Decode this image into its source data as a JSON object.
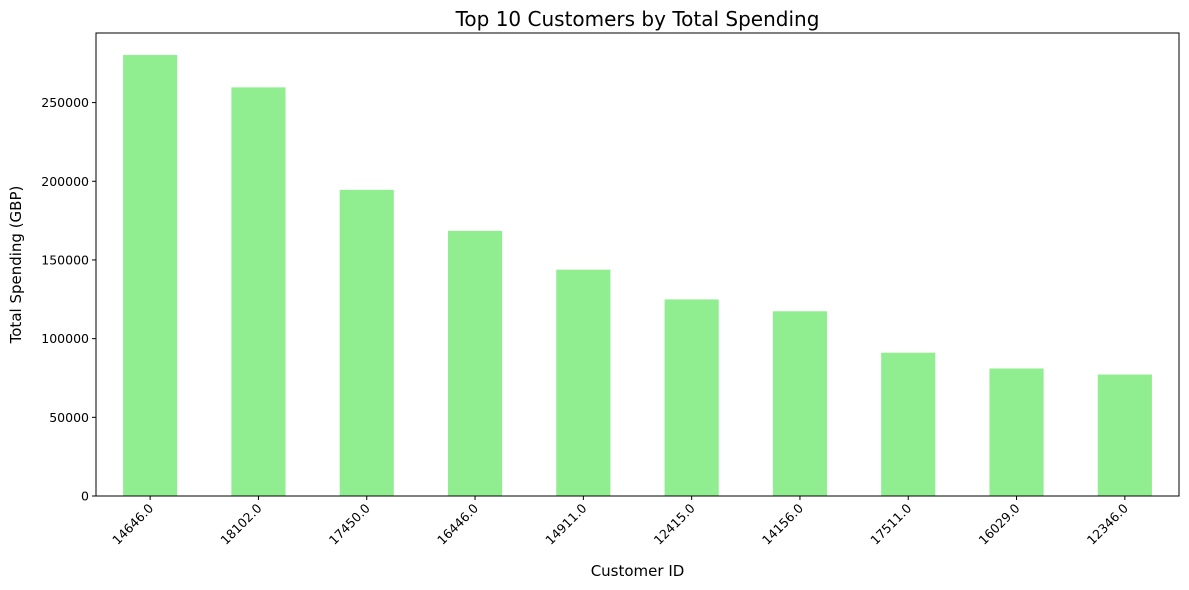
{
  "chart_data": {
    "type": "bar",
    "title": "Top 10 Customers by Total Spending",
    "xlabel": "Customer ID",
    "ylabel": "Total Spending (GBP)",
    "categories": [
      "14646.0",
      "18102.0",
      "17450.0",
      "16446.0",
      "14911.0",
      "12415.0",
      "14156.0",
      "17511.0",
      "16029.0",
      "12346.0"
    ],
    "values": [
      280206,
      259657,
      194551,
      168472,
      143825,
      124914,
      117379,
      91062,
      81025,
      77183
    ],
    "ylim": [
      0,
      294216
    ],
    "yticks": [
      0,
      50000,
      100000,
      150000,
      200000,
      250000
    ],
    "ytick_labels": [
      "0",
      "50000",
      "100000",
      "150000",
      "200000",
      "250000"
    ],
    "bar_color": "#90ee90",
    "grid": false,
    "legend": "none"
  }
}
